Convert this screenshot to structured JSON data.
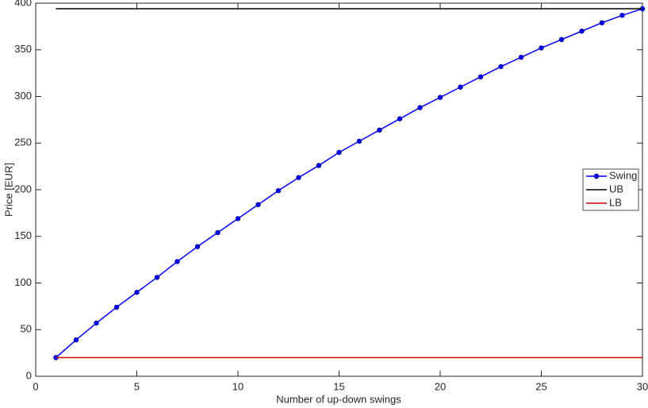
{
  "chart_data": {
    "type": "line",
    "xlabel": "Number of up-down swings",
    "ylabel": "Price [EUR]",
    "xlim": [
      0,
      30
    ],
    "xticks": [
      0,
      5,
      10,
      15,
      20,
      25,
      30
    ],
    "ylim": [
      0,
      400
    ],
    "yticks": [
      0,
      50,
      100,
      150,
      200,
      250,
      300,
      350,
      400
    ],
    "legend": "east",
    "series": [
      {
        "name": "Swing",
        "color": "#0000ff",
        "marker": true,
        "x": [
          1,
          2,
          3,
          4,
          5,
          6,
          7,
          8,
          9,
          10,
          11,
          12,
          13,
          14,
          15,
          16,
          17,
          18,
          19,
          20,
          21,
          22,
          23,
          24,
          25,
          26,
          27,
          28,
          29,
          30
        ],
        "values": [
          20,
          39,
          57,
          74,
          90,
          106,
          123,
          139,
          154,
          169,
          184,
          199,
          213,
          226,
          240,
          252,
          264,
          276,
          288,
          299,
          310,
          321,
          332,
          342,
          352,
          361,
          370,
          379,
          387,
          394
        ]
      },
      {
        "name": "UB",
        "color": "#000000",
        "marker": false,
        "x": [
          1,
          30
        ],
        "values": [
          394,
          394
        ]
      },
      {
        "name": "LB",
        "color": "#cc0000",
        "marker": false,
        "x": [
          1,
          30
        ],
        "values": [
          20,
          20
        ]
      }
    ]
  }
}
